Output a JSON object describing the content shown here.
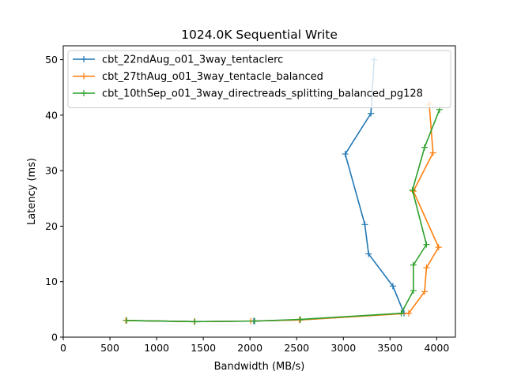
{
  "chart_data": {
    "type": "line",
    "title": "1024.0K  Sequential Write",
    "xlabel": "Bandwidth (MB/s)",
    "ylabel": "Latency (ms)",
    "xlim": [
      0,
      4200
    ],
    "ylim": [
      0,
      52.5
    ],
    "xticks": [
      0,
      500,
      1000,
      1500,
      2000,
      2500,
      3000,
      3500,
      4000
    ],
    "yticks": [
      0,
      10,
      20,
      30,
      40,
      50
    ],
    "grid": false,
    "legend_position": "top-left",
    "marker": "+",
    "series": [
      {
        "name": "cbt_22ndAug_o01_3way_tentaclerc",
        "color": "#1f77b4",
        "points": [
          [
            670,
            3.0
          ],
          [
            1405,
            2.8
          ],
          [
            2040,
            2.9
          ],
          [
            2530,
            3.1
          ],
          [
            3650,
            4.3
          ],
          [
            3530,
            9.2
          ],
          [
            3270,
            15.0
          ],
          [
            3230,
            20.3
          ],
          [
            3020,
            33.0
          ],
          [
            3295,
            40.3
          ],
          [
            3330,
            50.0
          ]
        ]
      },
      {
        "name": "cbt_27thAug_o01_3way_tentacle_balanced",
        "color": "#ff7f0e",
        "points": [
          [
            670,
            3.0
          ],
          [
            1405,
            2.8
          ],
          [
            2010,
            2.9
          ],
          [
            2530,
            3.1
          ],
          [
            3700,
            4.3
          ],
          [
            3870,
            8.2
          ],
          [
            3890,
            12.5
          ],
          [
            4020,
            16.2
          ],
          [
            3750,
            26.3
          ],
          [
            3960,
            33.2
          ],
          [
            3920,
            42.0
          ]
        ]
      },
      {
        "name": "cbt_10thSep_o01_3way_directreads_splitting_balanced_pg128",
        "color": "#2ca02c",
        "points": [
          [
            680,
            3.0
          ],
          [
            1410,
            2.8
          ],
          [
            2050,
            2.9
          ],
          [
            2540,
            3.2
          ],
          [
            3620,
            4.3
          ],
          [
            3750,
            8.4
          ],
          [
            3750,
            13.0
          ],
          [
            3890,
            16.7
          ],
          [
            3740,
            26.5
          ],
          [
            3870,
            34.2
          ],
          [
            4030,
            41.0
          ]
        ]
      }
    ]
  }
}
